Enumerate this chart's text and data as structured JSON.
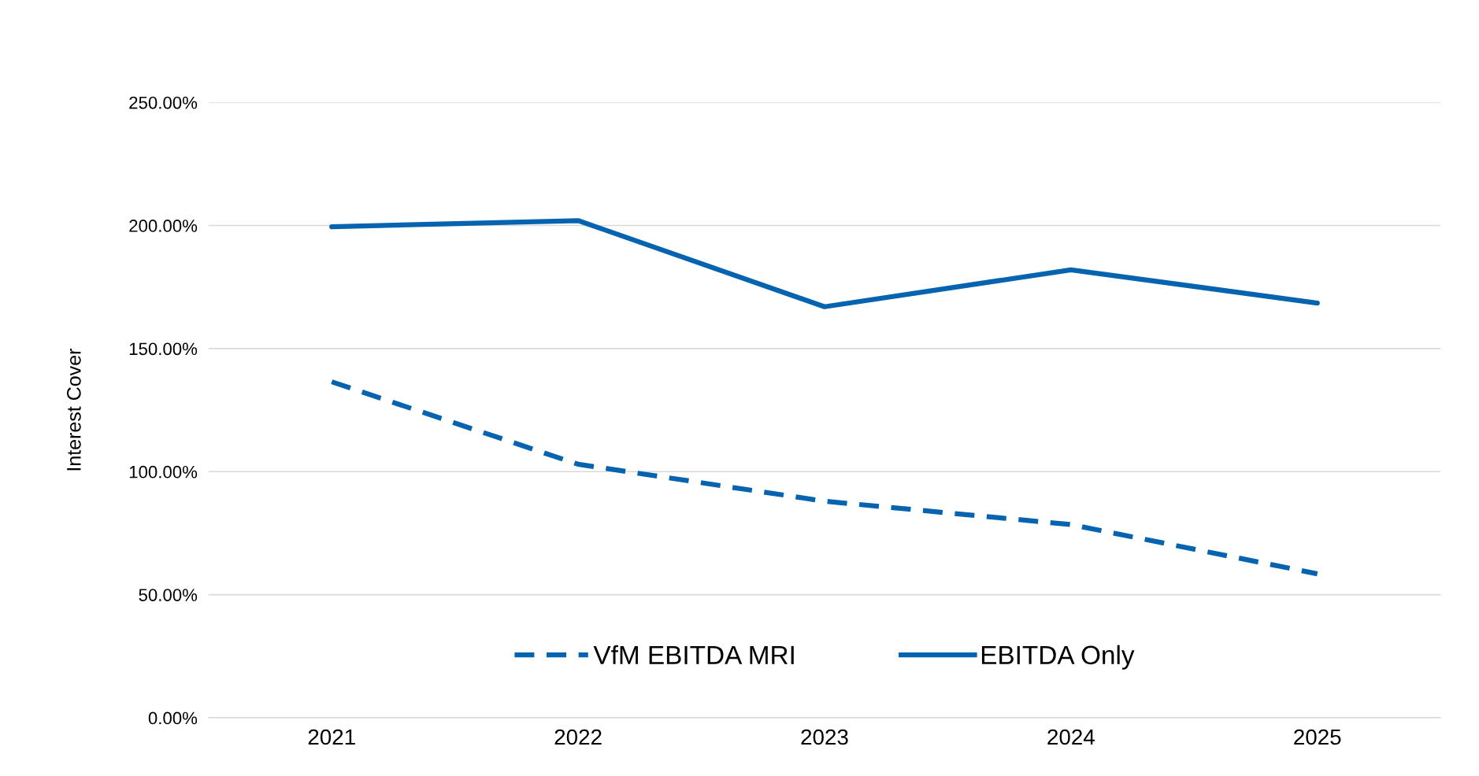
{
  "chart_data": {
    "type": "line",
    "ylabel": "Interest Cover",
    "categories": [
      "2021",
      "2022",
      "2023",
      "2024",
      "2025"
    ],
    "series": [
      {
        "name": "VfM EBITDA MRI",
        "color": "#0563b0",
        "line_style": "dashed",
        "values": [
          136.5,
          103,
          88,
          78.5,
          58.5
        ]
      },
      {
        "name": "EBITDA Only",
        "color": "#0563b0",
        "line_style": "solid",
        "values": [
          199.5,
          202,
          167,
          182,
          168.5
        ]
      }
    ],
    "ylim": [
      0,
      250
    ],
    "yticks": [
      {
        "value": 0,
        "label": "0.00%"
      },
      {
        "value": 50,
        "label": "50.00%"
      },
      {
        "value": 100,
        "label": "100.00%"
      },
      {
        "value": 150,
        "label": "150.00%"
      },
      {
        "value": 200,
        "label": "200.00%"
      },
      {
        "value": 250,
        "label": "250.00%"
      }
    ],
    "grid": "y",
    "legend": "bottom",
    "marker": "none"
  }
}
